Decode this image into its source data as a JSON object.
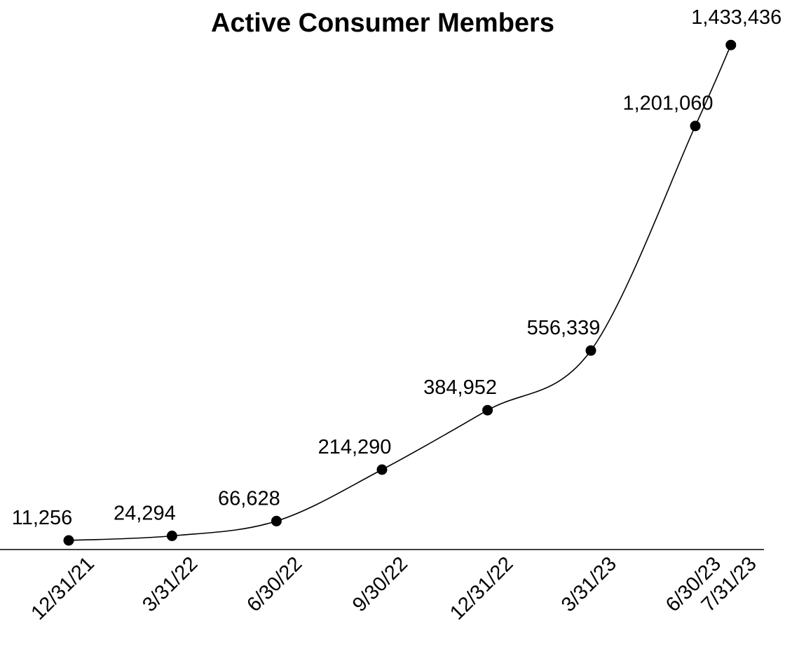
{
  "chart_data": {
    "type": "line",
    "title": "Active Consumer Members",
    "xlabel": "",
    "ylabel": "",
    "categories": [
      "12/31/21",
      "3/31/22",
      "6/30/22",
      "9/30/22",
      "12/31/22",
      "3/31/23",
      "6/30/23",
      "7/31/23"
    ],
    "series": [
      {
        "values": [
          11256,
          24294,
          66628,
          214290,
          384952,
          556339,
          1201060,
          1433436
        ],
        "labels": [
          "11,256",
          "24,294",
          "66,628",
          "214,290",
          "384,952",
          "556,339",
          "1,201,060",
          "1,433,436"
        ]
      }
    ],
    "ylim": [
      -15000,
      1470000
    ],
    "y_axis_visible": false,
    "grid": false,
    "legend": "none",
    "line_style": "smooth",
    "marker": "filled-circle",
    "line_color": "#000000"
  }
}
